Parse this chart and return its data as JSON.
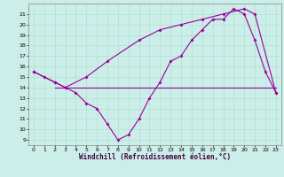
{
  "xlabel": "Windchill (Refroidissement éolien,°C)",
  "bg_color": "#cceee8",
  "line_color": "#990099",
  "grid_color": "#aaddcc",
  "ylim": [
    8.5,
    22
  ],
  "xlim": [
    -0.5,
    23.5
  ],
  "yticks": [
    9,
    10,
    11,
    12,
    13,
    14,
    15,
    16,
    17,
    18,
    19,
    20,
    21
  ],
  "xticks": [
    0,
    1,
    2,
    3,
    4,
    5,
    6,
    7,
    8,
    9,
    10,
    11,
    12,
    13,
    14,
    15,
    16,
    17,
    18,
    19,
    20,
    21,
    22,
    23
  ],
  "series1_x": [
    0,
    1,
    2,
    3,
    4,
    5,
    6,
    7,
    8,
    9,
    10,
    11,
    12,
    13,
    14,
    15,
    16,
    17,
    18,
    19,
    20,
    21,
    22,
    23
  ],
  "series1_y": [
    15.5,
    15.0,
    14.5,
    14.0,
    13.5,
    12.5,
    12.0,
    10.5,
    9.0,
    9.5,
    11.0,
    13.0,
    14.5,
    16.5,
    17.0,
    18.5,
    19.5,
    20.5,
    20.5,
    21.5,
    21.0,
    18.5,
    15.5,
    13.5
  ],
  "series2_x": [
    0,
    2,
    3,
    5,
    7,
    10,
    12,
    14,
    16,
    18,
    20,
    21,
    23
  ],
  "series2_y": [
    15.5,
    14.5,
    14.0,
    15.0,
    16.5,
    18.5,
    19.5,
    20.0,
    20.5,
    21.0,
    21.5,
    21.0,
    13.5
  ],
  "series3_x": [
    2,
    23
  ],
  "series3_y": [
    14.0,
    14.0
  ],
  "xlabel_color": "#440044",
  "tick_labelsize": 4.5,
  "xlabel_fontsize": 5.5,
  "linewidth": 0.8,
  "markersize": 2.0
}
